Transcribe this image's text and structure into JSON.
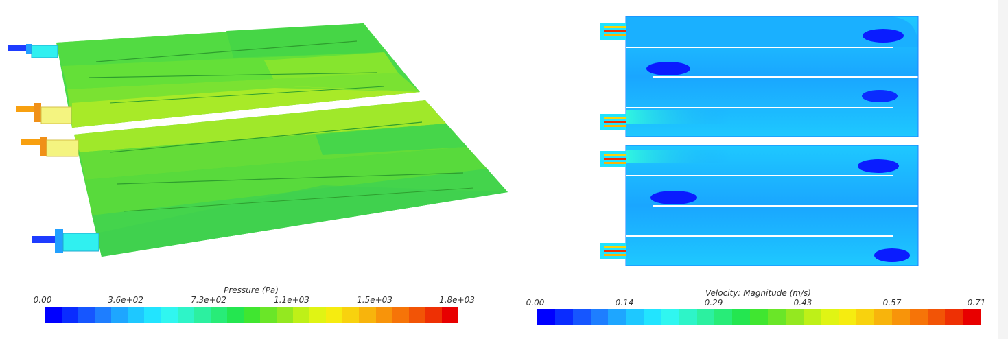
{
  "left_panel": {
    "colorbar": {
      "title": "Pressure (Pa)",
      "ticks": [
        "0.00",
        "3.6e+02",
        "7.3e+02",
        "1.1e+03",
        "1.5e+03",
        "1.8e+03"
      ]
    }
  },
  "right_panel": {
    "colorbar": {
      "title": "Velocity: Magnitude (m/s)",
      "ticks": [
        "0.00",
        "0.14",
        "0.29",
        "0.43",
        "0.57",
        "0.71"
      ]
    }
  },
  "colormap": [
    "#0000ff",
    "#0a2cff",
    "#1656ff",
    "#1e7eff",
    "#1ea6ff",
    "#1ec8ff",
    "#22e4ff",
    "#30f6f0",
    "#2ef4c8",
    "#2cf0a0",
    "#28ec78",
    "#24e650",
    "#40e630",
    "#6ae628",
    "#94e820",
    "#bef018",
    "#e0f414",
    "#f6ec10",
    "#f8d20e",
    "#f8b40c",
    "#f8940a",
    "#f67408",
    "#f25406",
    "#ee3004",
    "#e80000"
  ]
}
